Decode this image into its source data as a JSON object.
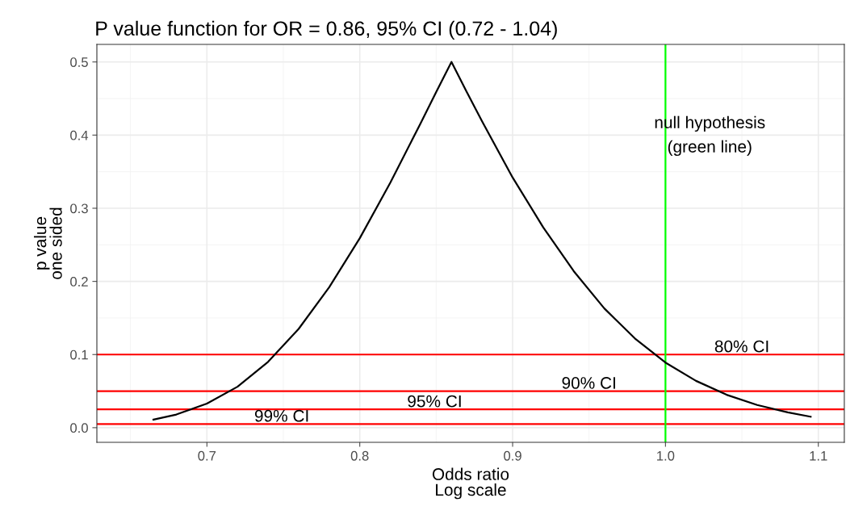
{
  "chart_data": {
    "type": "line",
    "title": "P value function for OR = 0.86, 95% CI (0.72 - 1.04)",
    "xlabel": "Odds ratio\nLog scale",
    "ylabel": "p value\none sided",
    "x": [
      0.665,
      0.68,
      0.7,
      0.72,
      0.74,
      0.76,
      0.78,
      0.8,
      0.82,
      0.84,
      0.85,
      0.86,
      0.87,
      0.88,
      0.9,
      0.92,
      0.94,
      0.96,
      0.98,
      1.0,
      1.02,
      1.04,
      1.06,
      1.08,
      1.095
    ],
    "series": [
      {
        "color": "#000000",
        "values": [
          0.011,
          0.018,
          0.033,
          0.056,
          0.09,
          0.135,
          0.192,
          0.259,
          0.335,
          0.417,
          0.459,
          0.5,
          0.459,
          0.419,
          0.342,
          0.274,
          0.214,
          0.163,
          0.122,
          0.089,
          0.064,
          0.045,
          0.031,
          0.021,
          0.015
        ]
      }
    ],
    "xlim": [
      0.628,
      1.117
    ],
    "ylim": [
      -0.02,
      0.524
    ],
    "xticks": [
      0.7,
      0.8,
      0.9,
      {
        "value": 1.0,
        "label": "1.0"
      },
      1.1
    ],
    "yticks": [
      {
        "value": 0,
        "label": "0.0"
      },
      0.1,
      0.2,
      0.3,
      0.4,
      0.5
    ],
    "grid": true,
    "marker": "none",
    "line_style": "solid",
    "ref_lines": [
      {
        "axis": "y",
        "value": 0.1,
        "color": "#ff0000"
      },
      {
        "axis": "y",
        "value": 0.05,
        "color": "#ff0000"
      },
      {
        "axis": "y",
        "value": 0.025,
        "color": "#ff0000"
      },
      {
        "axis": "y",
        "value": 0.005,
        "color": "#ff0000"
      },
      {
        "axis": "x",
        "value": 1.0,
        "color": "#00ff00"
      }
    ],
    "annotations": [
      {
        "text": "80% CI",
        "x": 1.05,
        "y": 0.1
      },
      {
        "text": "90% CI",
        "x": 0.95,
        "y": 0.05
      },
      {
        "text": "95% CI",
        "x": 0.849,
        "y": 0.025
      },
      {
        "text": "99% CI",
        "x": 0.749,
        "y": 0.005
      },
      "null hypothesis\n(green line)"
    ]
  }
}
